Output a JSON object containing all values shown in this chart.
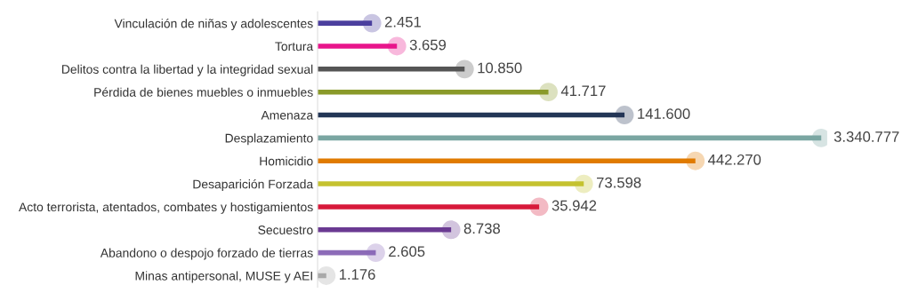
{
  "chart_data": {
    "type": "lollipop",
    "orientation": "horizontal",
    "log": "x",
    "tick_labels": "y",
    "value_labels": [
      "2.451",
      "3.659",
      "10.850",
      "41.717",
      "141.600",
      "3.340.777",
      "442.270",
      "73.598",
      "35.942",
      "8.738",
      "2.605",
      "1.176"
    ],
    "categories": [
      "Vinculación de niñas y adolescentes",
      "Tortura",
      "Delitos contra la libertad y la integridad sexual",
      "Pérdida de bienes muebles o inmuebles",
      "Amenaza",
      "Desplazamiento",
      "Homicidio",
      "Desaparición Forzada",
      "Acto terrorista, atentados, combates y hostigamientos",
      "Secuestro",
      "Abandono o despojo forzado de tierras",
      "Minas antipersonal, MUSE y AEI"
    ],
    "values": [
      2451,
      3659,
      10850,
      41717,
      141600,
      3340777,
      442270,
      73598,
      35942,
      8738,
      2605,
      1176
    ],
    "colors": [
      "#4b3f9e",
      "#e8158b",
      "#555555",
      "#8a9a2a",
      "#233656",
      "#7aa6a2",
      "#e07b00",
      "#c5c22f",
      "#d7193a",
      "#6a3a92",
      "#8c6bb8",
      "#aaaaaa"
    ]
  }
}
